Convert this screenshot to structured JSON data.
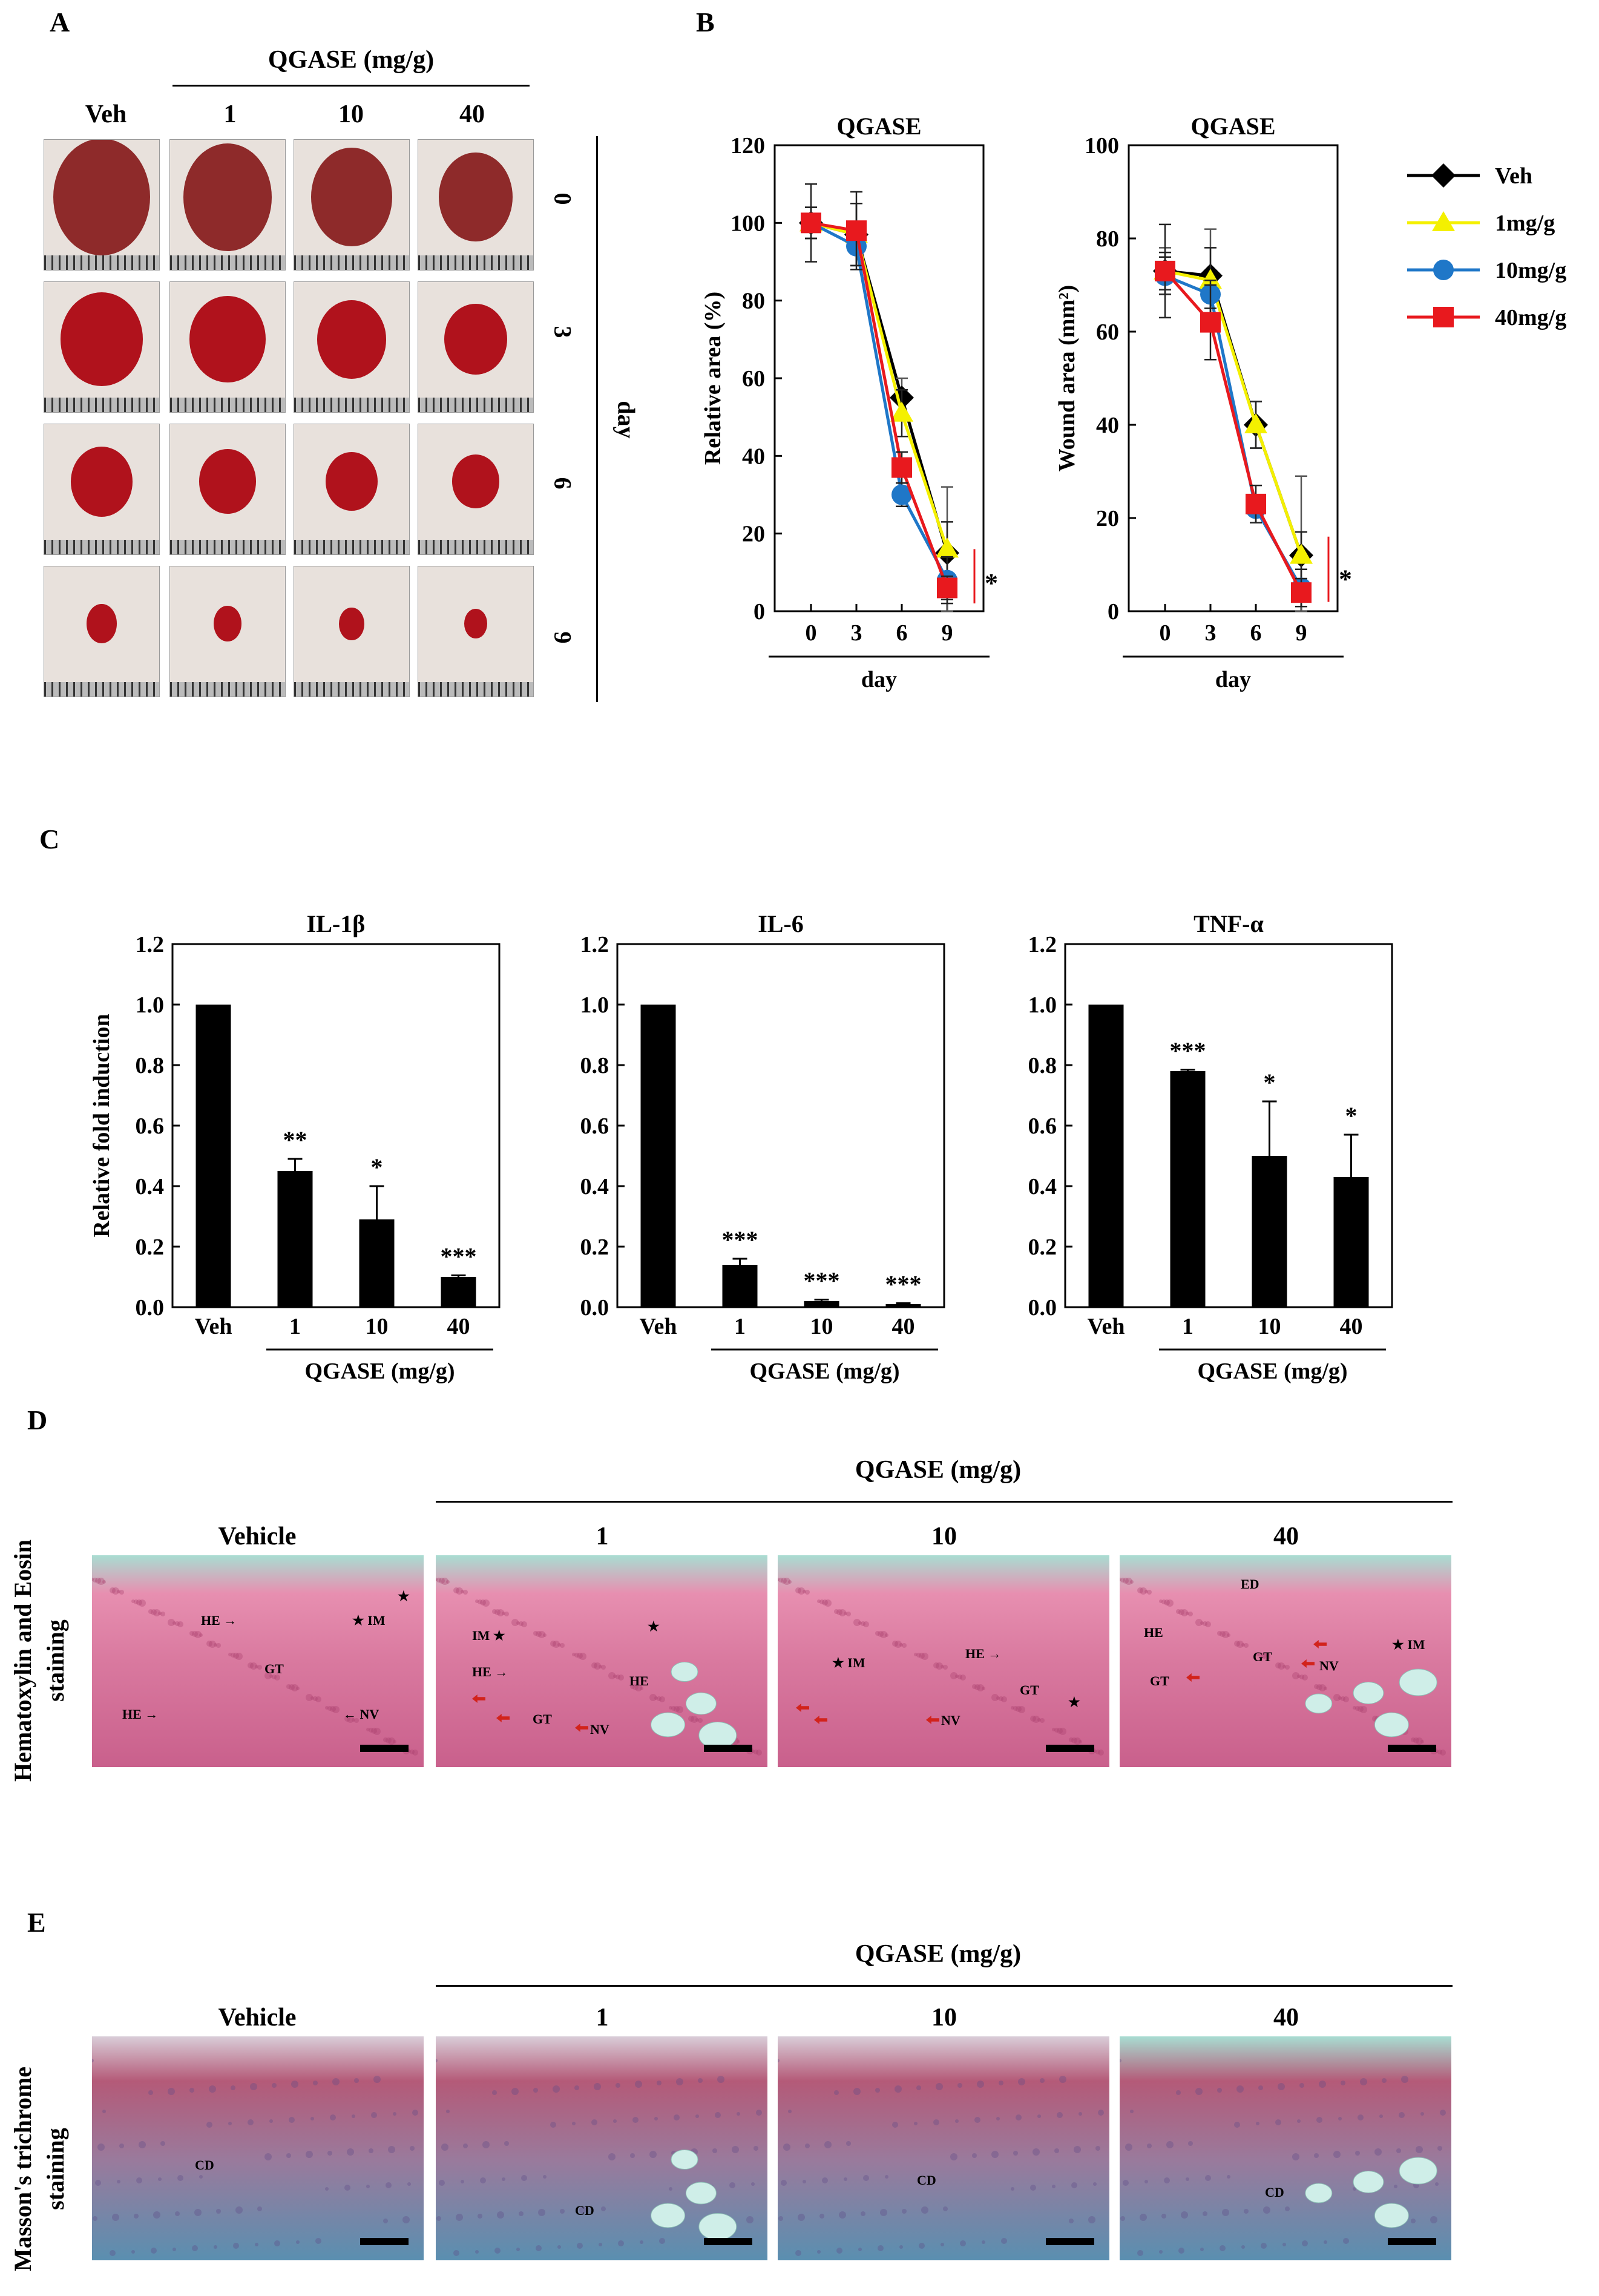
{
  "panel_labels": {
    "a": "A",
    "b": "B",
    "c": "C",
    "d": "D",
    "e": "E"
  },
  "panel_a": {
    "group_header": "QGASE (mg/g)",
    "columns": [
      "Veh",
      "1",
      "10",
      "40"
    ],
    "rows": [
      "0",
      "3",
      "6",
      "9"
    ],
    "axis_label": "day",
    "wound_color": "#b0121c",
    "skin_color": "#e8e1dc"
  },
  "panel_b": {
    "legend": [
      "Veh",
      "1mg/g",
      "10mg/g",
      "40mg/g"
    ],
    "colors": [
      "#000000",
      "#f4f000",
      "#1f77c8",
      "#e8191e"
    ],
    "markers": [
      "diamond",
      "triangle",
      "circle",
      "square"
    ]
  },
  "panel_c": {
    "ylabel": "Relative fold induction",
    "group_label": "QGASE (mg/g)"
  },
  "panel_d": {
    "group_header": "QGASE (mg/g)",
    "row_label": "Hematoxylin and Eosin staining",
    "columns": [
      "Vehicle",
      "1",
      "10",
      "40"
    ],
    "tags": {
      "he": "HE",
      "im": "IM",
      "gt": "GT",
      "nv": "NV",
      "ed": "ED",
      "he_arrow": "HE →",
      "nv_arrow": "← NV",
      "star": "★"
    },
    "stain_color": "#d9799f",
    "background_color": "#a8ddd2"
  },
  "panel_e": {
    "group_header": "QGASE (mg/g)",
    "row_label": "Masson's trichrome staining",
    "columns": [
      "Vehicle",
      "1",
      "10",
      "40"
    ],
    "tag_cd": "CD",
    "stain_color": "#b45a78",
    "collagen_color": "#5a8fb0"
  },
  "chart_data": [
    {
      "type": "line",
      "title": "QGASE",
      "xlabel": "day",
      "ylabel": "Relative area (%)",
      "x": [
        0,
        3,
        6,
        9
      ],
      "ylim": [
        0,
        120
      ],
      "yticks": [
        0,
        20,
        40,
        60,
        80,
        100,
        120
      ],
      "significance": "*",
      "series": [
        {
          "name": "Veh",
          "values": [
            100,
            97,
            55,
            15
          ],
          "errors": [
            4,
            8,
            5,
            17
          ]
        },
        {
          "name": "1mg/g",
          "values": [
            100,
            97,
            51,
            16
          ],
          "errors": [
            4,
            8,
            6,
            7
          ]
        },
        {
          "name": "10mg/g",
          "values": [
            100,
            94,
            30,
            8
          ],
          "errors": [
            4,
            5,
            3,
            6
          ]
        },
        {
          "name": "40mg/g",
          "values": [
            100,
            98,
            37,
            6
          ],
          "errors": [
            10,
            10,
            4,
            3
          ]
        }
      ]
    },
    {
      "type": "line",
      "title": "QGASE",
      "xlabel": "day",
      "ylabel": "Wound area (mm²)",
      "x": [
        0,
        3,
        6,
        9
      ],
      "ylim": [
        0,
        100
      ],
      "yticks": [
        0,
        20,
        40,
        60,
        80,
        100
      ],
      "significance": "*",
      "series": [
        {
          "name": "Veh",
          "values": [
            73,
            72,
            40,
            12
          ],
          "errors": [
            5,
            10,
            5,
            17
          ]
        },
        {
          "name": "1mg/g",
          "values": [
            73,
            71,
            40,
            12
          ],
          "errors": [
            4,
            7,
            5,
            5
          ]
        },
        {
          "name": "10mg/g",
          "values": [
            72,
            68,
            22,
            5
          ],
          "errors": [
            4,
            3,
            3,
            4
          ]
        },
        {
          "name": "40mg/g",
          "values": [
            73,
            62,
            23,
            4
          ],
          "errors": [
            10,
            8,
            4,
            3
          ]
        }
      ]
    },
    {
      "type": "bar",
      "title": "IL-1β",
      "categories": [
        "Veh",
        "1",
        "10",
        "40"
      ],
      "values": [
        1.0,
        0.45,
        0.29,
        0.1
      ],
      "errors": [
        0,
        0.04,
        0.11,
        0.005
      ],
      "significance": [
        "",
        "**",
        "*",
        "***"
      ],
      "ylim": [
        0,
        1.2
      ],
      "yticks": [
        "0.0",
        "0.2",
        "0.4",
        "0.6",
        "0.8",
        "1.0",
        "1.2"
      ]
    },
    {
      "type": "bar",
      "title": "IL-6",
      "categories": [
        "Veh",
        "1",
        "10",
        "40"
      ],
      "values": [
        1.0,
        0.14,
        0.02,
        0.01
      ],
      "errors": [
        0,
        0.02,
        0.005,
        0.003
      ],
      "significance": [
        "",
        "***",
        "***",
        "***"
      ],
      "ylim": [
        0,
        1.2
      ],
      "yticks": [
        "0.0",
        "0.2",
        "0.4",
        "0.6",
        "0.8",
        "1.0",
        "1.2"
      ]
    },
    {
      "type": "bar",
      "title": "TNF-α",
      "categories": [
        "Veh",
        "1",
        "10",
        "40"
      ],
      "values": [
        1.0,
        0.78,
        0.5,
        0.43
      ],
      "errors": [
        0,
        0.005,
        0.18,
        0.14
      ],
      "significance": [
        "",
        "***",
        "*",
        "*"
      ],
      "ylim": [
        0,
        1.2
      ],
      "yticks": [
        "0.0",
        "0.2",
        "0.4",
        "0.6",
        "0.8",
        "1.0",
        "1.2"
      ]
    }
  ]
}
